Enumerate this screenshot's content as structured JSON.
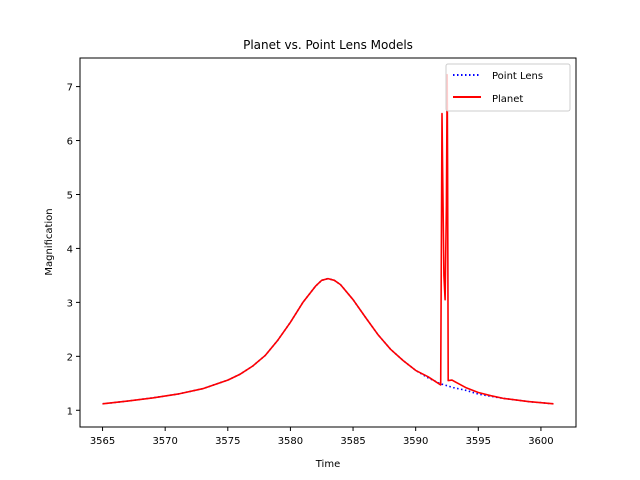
{
  "chart_data": {
    "type": "line",
    "title": "Planet vs. Point Lens Models",
    "xlabel": "Time",
    "ylabel": "Magnification",
    "xlim": [
      3563.2,
      3602.8
    ],
    "ylim": [
      0.69,
      7.53
    ],
    "xticks": [
      3565,
      3570,
      3575,
      3580,
      3585,
      3590,
      3595,
      3600
    ],
    "yticks": [
      1,
      2,
      3,
      4,
      5,
      6,
      7
    ],
    "grid": false,
    "legend_position": "top-right",
    "series": [
      {
        "name": "Point Lens",
        "color": "#0000ff",
        "style": "dotted",
        "x": [
          3565,
          3567,
          3569,
          3571,
          3573,
          3575,
          3576,
          3577,
          3578,
          3579,
          3580,
          3581,
          3582,
          3582.5,
          3583,
          3583.5,
          3584,
          3585,
          3586,
          3587,
          3588,
          3589,
          3590,
          3591,
          3592,
          3593,
          3594,
          3595,
          3596,
          3597,
          3599,
          3601
        ],
        "y": [
          1.12,
          1.17,
          1.23,
          1.3,
          1.4,
          1.56,
          1.67,
          1.82,
          2.02,
          2.3,
          2.63,
          3.0,
          3.3,
          3.41,
          3.44,
          3.41,
          3.33,
          3.05,
          2.72,
          2.4,
          2.13,
          1.92,
          1.74,
          1.6,
          1.49,
          1.42,
          1.37,
          1.3,
          1.26,
          1.22,
          1.16,
          1.12
        ]
      },
      {
        "name": "Planet",
        "color": "#ff0000",
        "style": "solid",
        "x": [
          3565,
          3567,
          3569,
          3571,
          3573,
          3575,
          3576,
          3577,
          3578,
          3579,
          3580,
          3581,
          3582,
          3582.5,
          3583,
          3583.5,
          3584,
          3585,
          3586,
          3587,
          3588,
          3589,
          3590,
          3591,
          3591.8,
          3592.0,
          3592.1,
          3592.15,
          3592.25,
          3592.35,
          3592.45,
          3592.52,
          3592.55,
          3592.6,
          3592.9,
          3593.2,
          3594,
          3595,
          3596,
          3597,
          3599,
          3601
        ],
        "y": [
          1.12,
          1.17,
          1.23,
          1.3,
          1.4,
          1.56,
          1.67,
          1.82,
          2.02,
          2.3,
          2.63,
          3.0,
          3.3,
          3.41,
          3.44,
          3.41,
          3.33,
          3.05,
          2.72,
          2.4,
          2.13,
          1.92,
          1.74,
          1.62,
          1.5,
          1.47,
          6.5,
          5.5,
          3.5,
          3.05,
          4.8,
          7.22,
          5.5,
          1.55,
          1.56,
          1.52,
          1.42,
          1.33,
          1.27,
          1.22,
          1.16,
          1.12
        ]
      }
    ]
  }
}
